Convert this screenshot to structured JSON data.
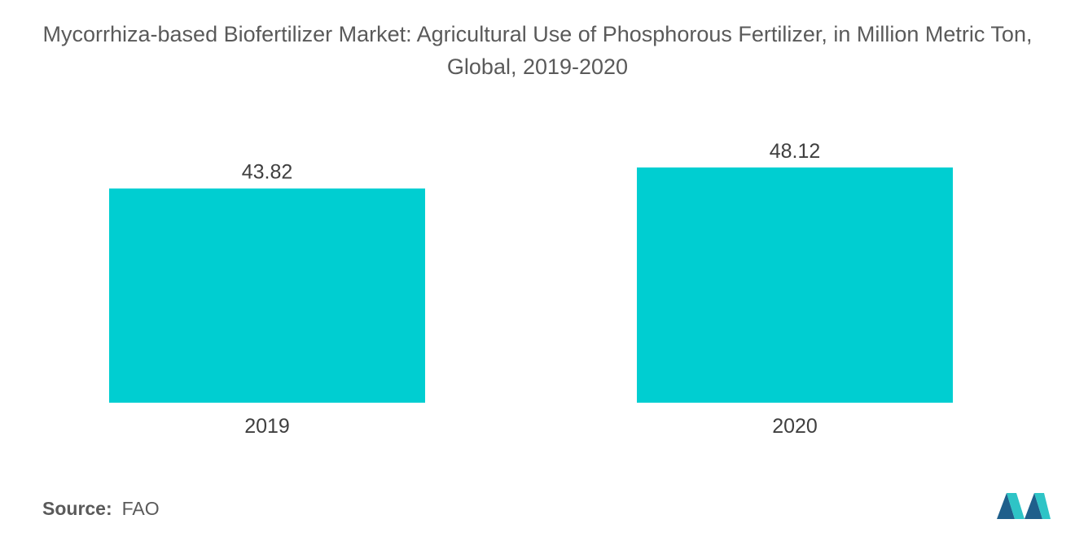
{
  "title": "Mycorrhiza-based Biofertilizer Market: Agricultural Use of Phosphorous Fertilizer, in Million Metric Ton, Global, 2019-2020",
  "source": {
    "label": "Source:",
    "value": "FAO"
  },
  "logo_icon": "mordor-intelligence-logo-icon",
  "colors": {
    "bar": "#00CED1",
    "logo_dark": "#1f5f8b",
    "logo_light": "#2ec4c6"
  },
  "chart_data": {
    "type": "bar",
    "categories": [
      "2019",
      "2020"
    ],
    "values": [
      43.82,
      48.12
    ],
    "data_labels": [
      "43.82",
      "48.12"
    ],
    "title": "Mycorrhiza-based Biofertilizer Market: Agricultural Use of Phosphorous Fertilizer, in Million Metric Ton, Global, 2019-2020",
    "xlabel": "",
    "ylabel": "",
    "grid": false,
    "legend": "none"
  }
}
